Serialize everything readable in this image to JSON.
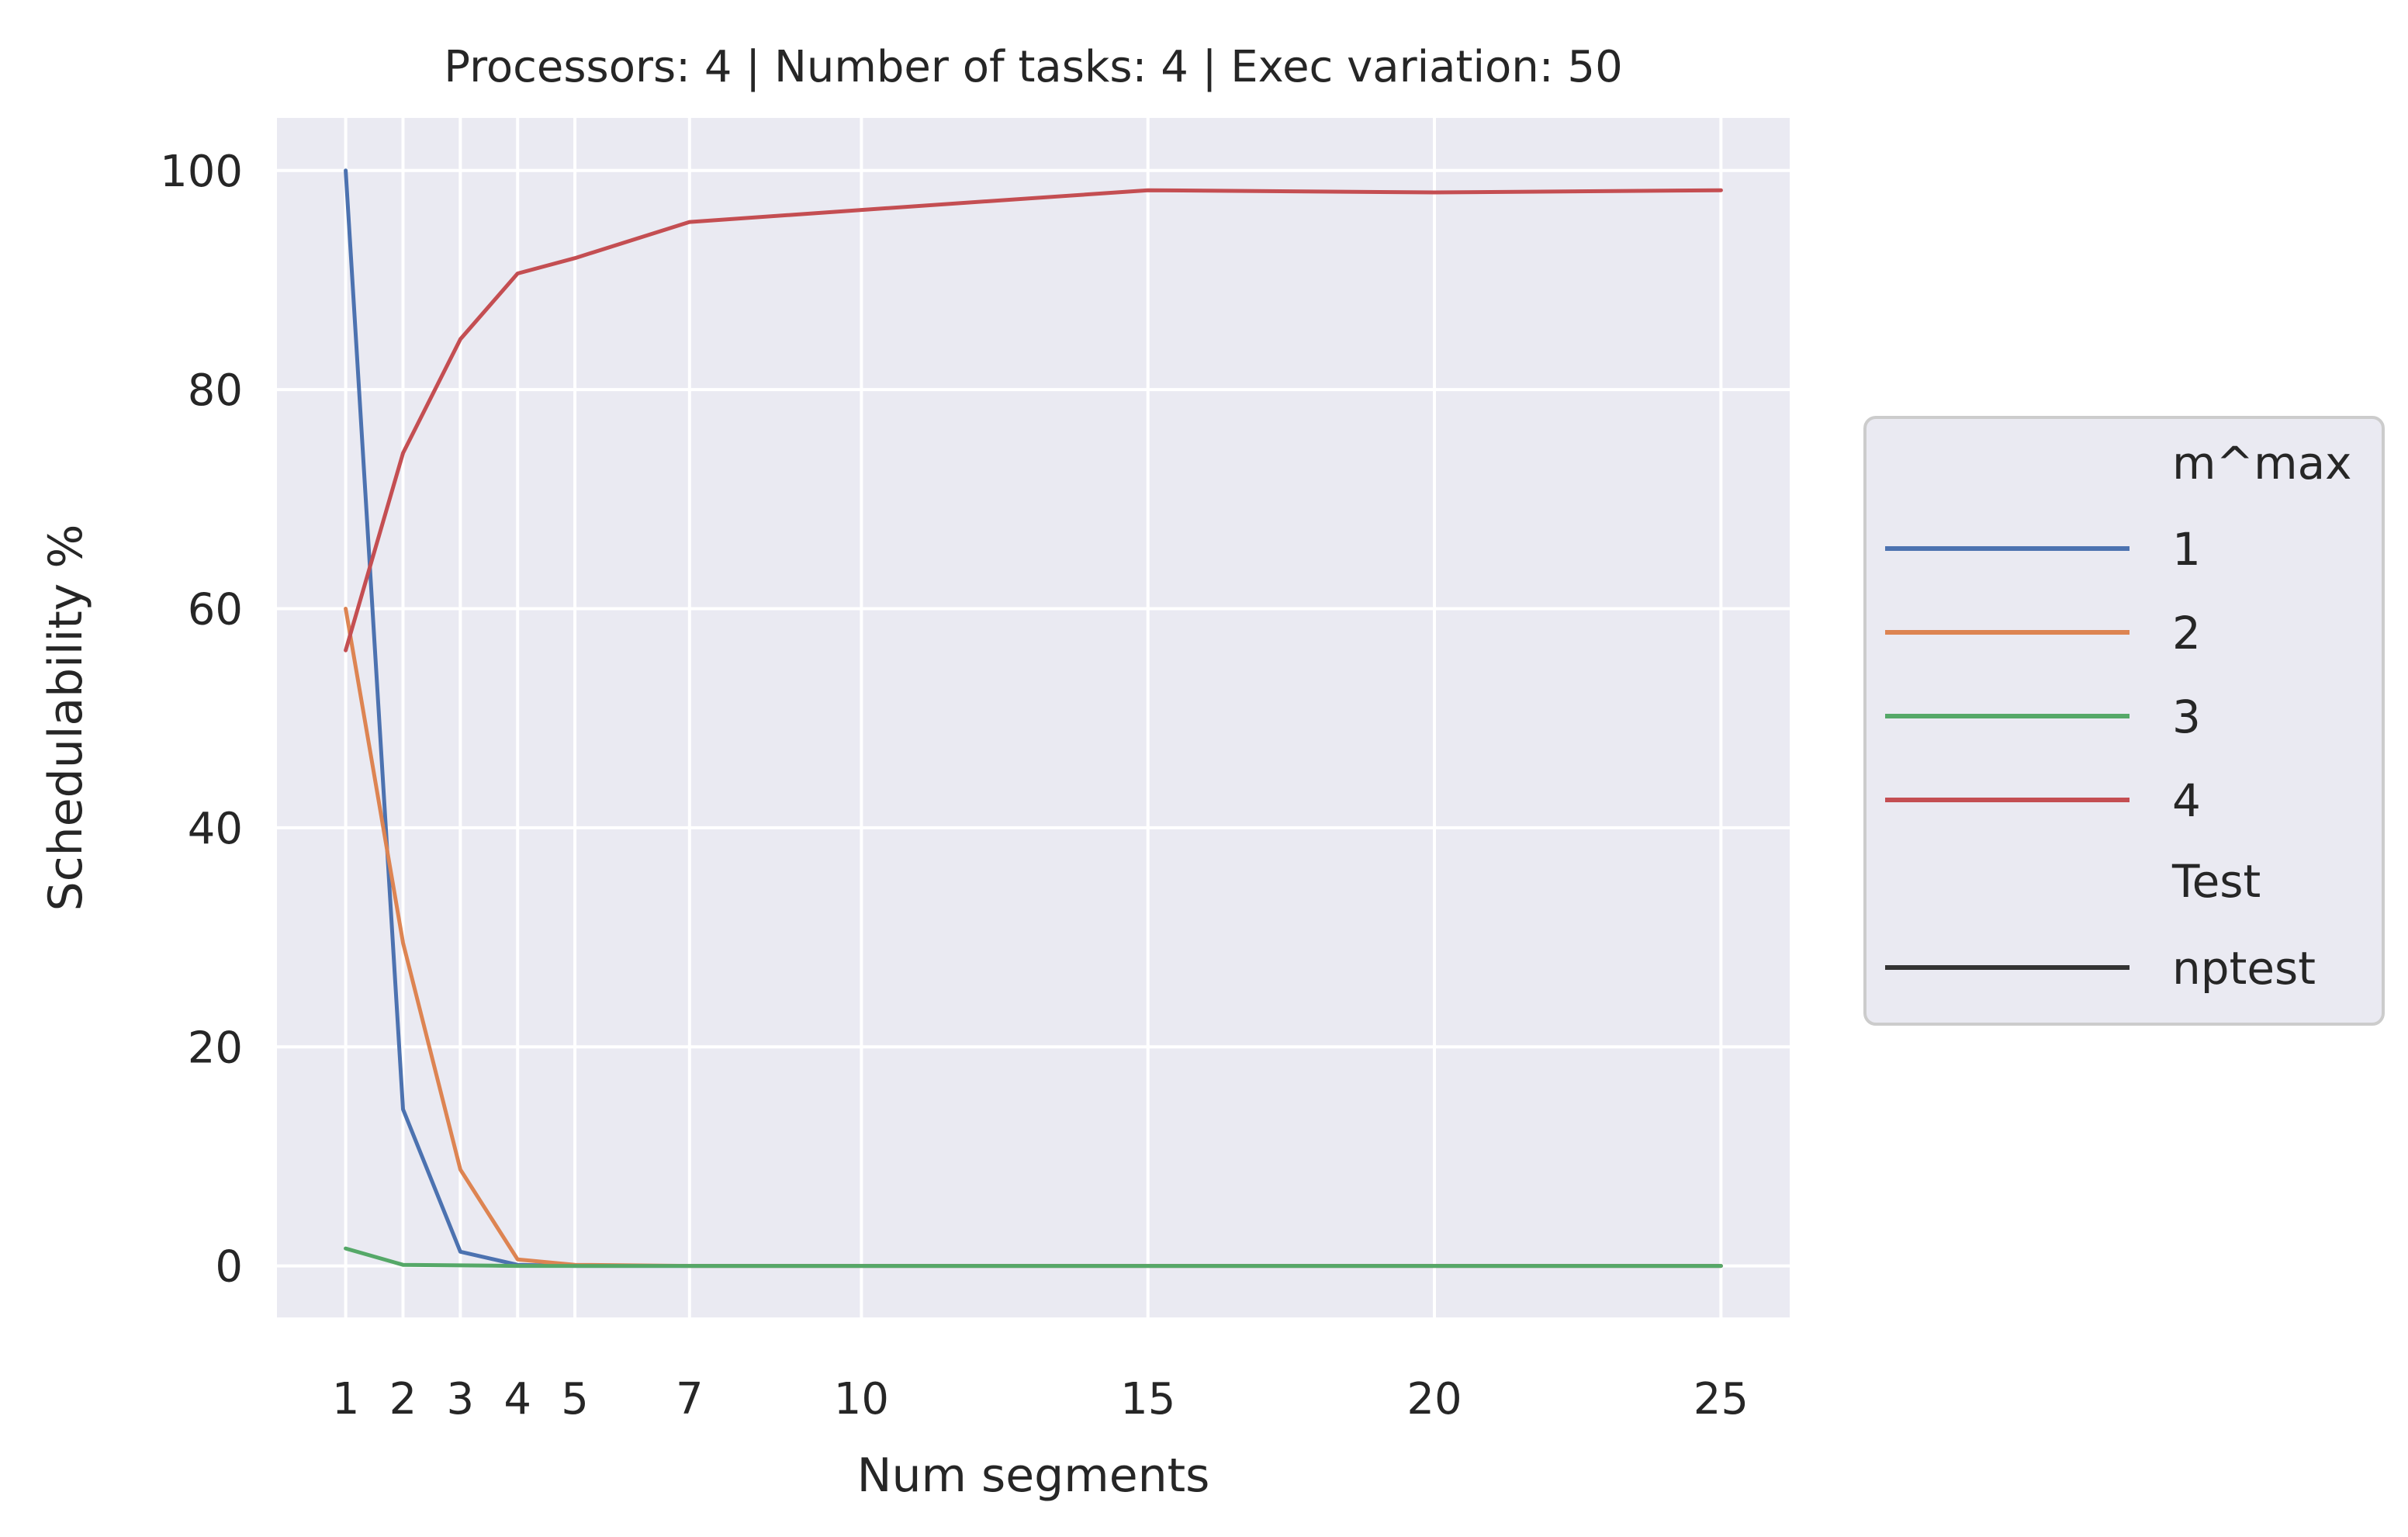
{
  "chart_data": {
    "type": "line",
    "title": "Processors: 4 | Number of tasks: 4 | Exec variation: 50",
    "xlabel": "Num segments",
    "ylabel": "Schedulability %",
    "x": [
      1,
      2,
      3,
      4,
      5,
      7,
      10,
      15,
      20,
      25
    ],
    "xticks": [
      1,
      2,
      3,
      4,
      5,
      7,
      10,
      15,
      20,
      25
    ],
    "yticks": [
      0,
      20,
      40,
      60,
      80,
      100
    ],
    "xlim": [
      -0.2,
      26.2
    ],
    "ylim": [
      -4.7,
      104.8
    ],
    "grid": true,
    "background": "#eaeaf2",
    "series": [
      {
        "name": "1",
        "color": "#4c72b0",
        "values": [
          100,
          14.3,
          1.3,
          0.1,
          0,
          0,
          0,
          0,
          0,
          0
        ]
      },
      {
        "name": "2",
        "color": "#dd8452",
        "values": [
          60,
          29.5,
          8.8,
          0.6,
          0.1,
          0,
          0,
          0,
          0,
          0
        ]
      },
      {
        "name": "3",
        "color": "#55a868",
        "values": [
          1.6,
          0.1,
          0.05,
          0,
          0,
          0,
          0,
          0,
          0,
          0
        ]
      },
      {
        "name": "4",
        "color": "#c44e52",
        "values": [
          56.2,
          74.2,
          84.6,
          90.6,
          92.0,
          95.3,
          96.4,
          98.2,
          98.0,
          98.2
        ]
      }
    ],
    "legend": {
      "placement": "right",
      "hue_title": "m^max",
      "style_title": "Test",
      "style_entries": [
        {
          "label": "nptest",
          "color": "#333333"
        }
      ]
    }
  }
}
